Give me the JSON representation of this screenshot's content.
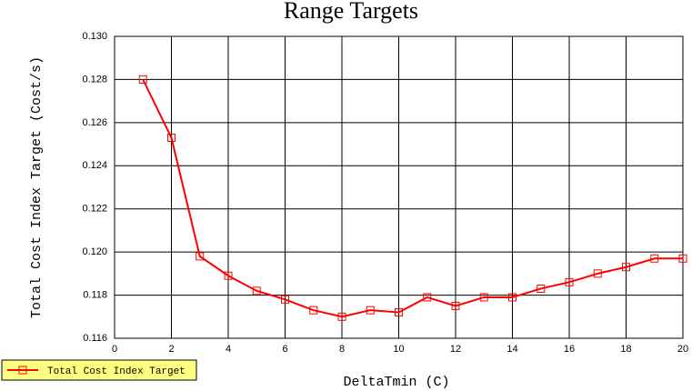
{
  "chart_data": {
    "type": "line",
    "title": "Range Targets",
    "x_label": "DeltaTmin (C)",
    "y_label": "Total Cost Index Target (Cost/s)",
    "x": [
      1,
      2,
      3,
      4,
      5,
      6,
      7,
      8,
      9,
      10,
      11,
      12,
      13,
      14,
      15,
      16,
      17,
      18,
      19,
      20
    ],
    "series": [
      {
        "name": "Total Cost Index Target",
        "color": "#ff0000",
        "values": [
          0.128,
          0.1253,
          0.1198,
          0.1189,
          0.1182,
          0.1178,
          0.1173,
          0.117,
          0.1173,
          0.1172,
          0.1179,
          0.1175,
          0.1179,
          0.1179,
          0.1183,
          0.1186,
          0.119,
          0.1193,
          0.1197,
          0.1197
        ]
      }
    ],
    "xlim": [
      0,
      20
    ],
    "xticks": [
      0,
      2,
      4,
      6,
      8,
      10,
      12,
      14,
      16,
      18,
      20
    ],
    "ylim": [
      0.116,
      0.13
    ],
    "yticks": [
      0.116,
      0.118,
      {
        "value": 0.12,
        "label": "0.120"
      },
      0.122,
      0.124,
      0.126,
      0.128,
      {
        "value": 0.13,
        "label": "0.130"
      }
    ],
    "grid": true,
    "legend": "bottom-left"
  }
}
